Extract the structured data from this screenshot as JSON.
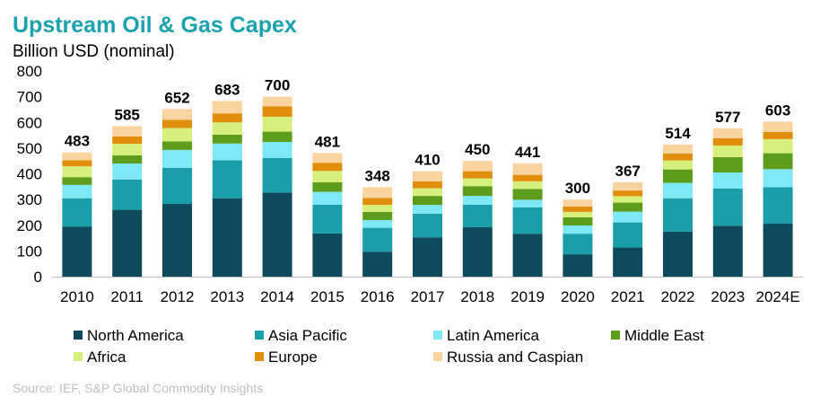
{
  "chart_data": {
    "type": "bar",
    "stacked": true,
    "title": "Upstream Oil & Gas Capex",
    "ylabel": "Billion USD (nominal)",
    "xlabel": "",
    "ylim": [
      0,
      800
    ],
    "yticks": [
      0,
      100,
      200,
      300,
      400,
      500,
      600,
      700,
      800
    ],
    "grid": false,
    "legend_position": "bottom",
    "categories": [
      "2010",
      "2011",
      "2012",
      "2013",
      "2014",
      "2015",
      "2016",
      "2017",
      "2018",
      "2019",
      "2020",
      "2021",
      "2022",
      "2023",
      "2024E"
    ],
    "totals": [
      483,
      585,
      652,
      683,
      700,
      481,
      348,
      410,
      450,
      441,
      300,
      367,
      514,
      577,
      603
    ],
    "series": [
      {
        "name": "North America",
        "color": "#0d4a5c",
        "values": [
          195,
          260,
          283,
          305,
          327,
          168,
          97,
          153,
          192,
          167,
          87,
          114,
          175,
          198,
          206
        ]
      },
      {
        "name": "Asia Pacific",
        "color": "#1a9faa",
        "values": [
          110,
          118,
          140,
          148,
          135,
          112,
          93,
          92,
          88,
          102,
          80,
          97,
          130,
          145,
          142
        ]
      },
      {
        "name": "Latin America",
        "color": "#7ee8f4",
        "values": [
          52,
          62,
          70,
          65,
          62,
          50,
          30,
          34,
          34,
          30,
          32,
          42,
          60,
          62,
          70
        ]
      },
      {
        "name": "Middle East",
        "color": "#5e9c1c",
        "values": [
          30,
          32,
          33,
          34,
          40,
          37,
          32,
          35,
          38,
          42,
          32,
          35,
          52,
          60,
          62
        ]
      },
      {
        "name": "Africa",
        "color": "#d7f07d",
        "values": [
          42,
          45,
          52,
          48,
          58,
          44,
          27,
          30,
          30,
          30,
          21,
          25,
          35,
          45,
          55
        ]
      },
      {
        "name": "Europe",
        "color": "#e08e0b",
        "values": [
          24,
          28,
          32,
          35,
          40,
          32,
          27,
          27,
          28,
          25,
          21,
          22,
          27,
          28,
          28
        ]
      },
      {
        "name": "Russia and Caspian",
        "color": "#fad49e",
        "values": [
          30,
          40,
          42,
          48,
          38,
          38,
          42,
          39,
          40,
          45,
          27,
          32,
          35,
          39,
          40
        ]
      }
    ],
    "source": "Source: IEF, S&P Global  Commodity  Insights"
  }
}
